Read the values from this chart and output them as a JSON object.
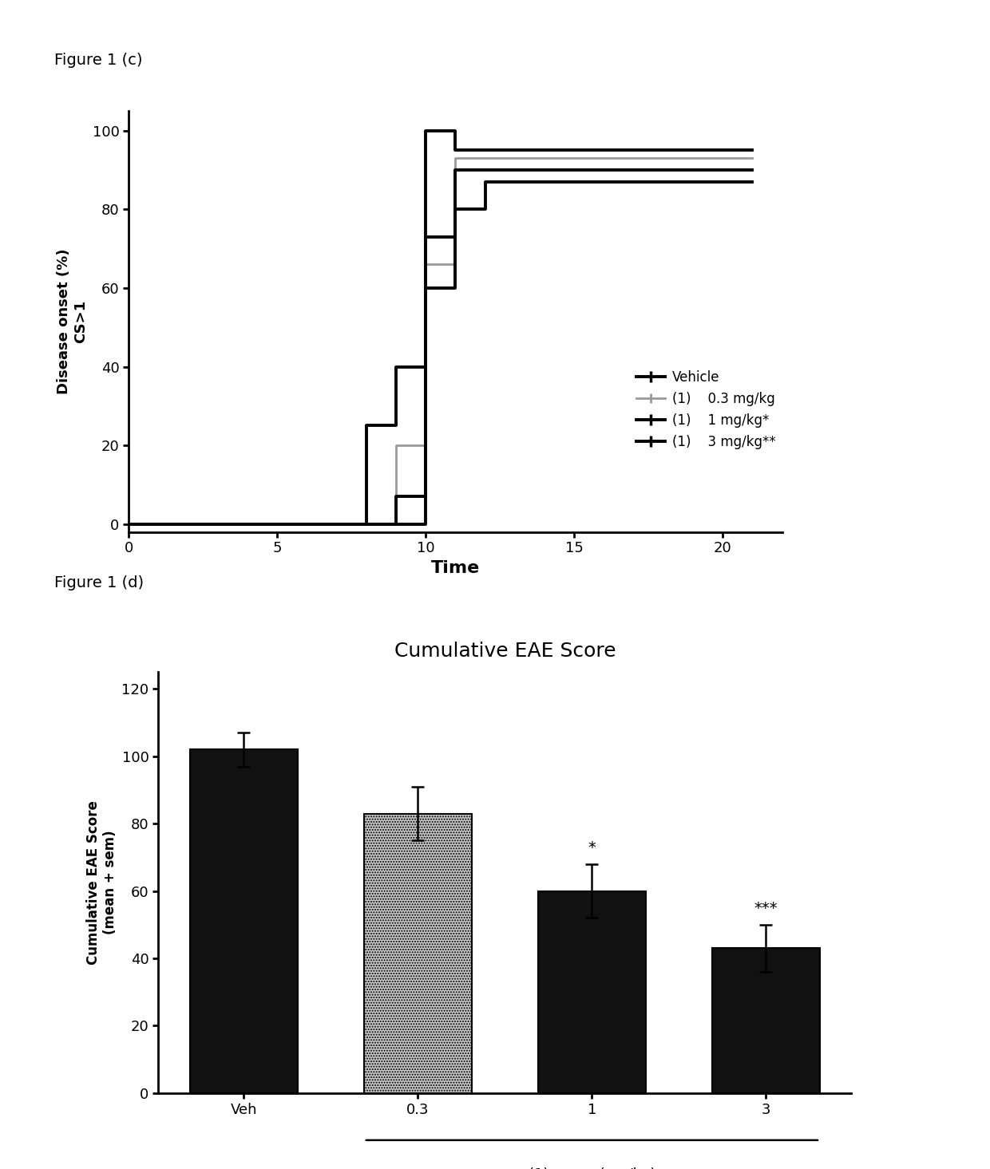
{
  "fig_label_c": "Figure 1 (c)",
  "fig_label_d": "Figure 1 (d)",
  "panel_c": {
    "xlabel": "Time",
    "ylabel": "Disease onset (%)\nCS>1",
    "xlim": [
      0,
      22
    ],
    "ylim": [
      -2,
      105
    ],
    "xticks": [
      0,
      5,
      10,
      15,
      20
    ],
    "yticks": [
      0,
      20,
      40,
      60,
      80,
      100
    ],
    "vehicle_x": [
      0,
      8,
      8,
      9,
      9,
      10,
      10,
      11,
      11,
      21
    ],
    "vehicle_y": [
      0,
      0,
      25,
      25,
      40,
      40,
      60,
      60,
      90,
      90
    ],
    "dose03_x": [
      0,
      9,
      9,
      10,
      10,
      11,
      11,
      21
    ],
    "dose03_y": [
      0,
      0,
      20,
      20,
      66,
      66,
      93,
      93
    ],
    "dose1_x": [
      0,
      9,
      9,
      10,
      10,
      11,
      11,
      12,
      12,
      21
    ],
    "dose1_y": [
      0,
      0,
      7,
      7,
      73,
      73,
      80,
      80,
      87,
      87
    ],
    "dose3_x": [
      0,
      10,
      10,
      11,
      11,
      21
    ],
    "dose3_y": [
      0,
      0,
      100,
      100,
      95,
      95
    ],
    "vehicle_color": "#000000",
    "dose03_color": "#999999",
    "dose1_color": "#000000",
    "dose3_color": "#000000",
    "lw_black": 2.8,
    "lw_gray": 2.0
  },
  "panel_d": {
    "title": "Cumulative EAE Score",
    "ylabel": "Cumulative EAE Score\n(mean + sem)",
    "categories": [
      "Veh",
      "0.3",
      "1",
      "3"
    ],
    "values": [
      102,
      83,
      60,
      43
    ],
    "errors": [
      5,
      8,
      8,
      7
    ],
    "bar_colors": [
      "#111111",
      "#c8c8c8",
      "#111111",
      "#111111"
    ],
    "ylim": [
      0,
      125
    ],
    "yticks": [
      0,
      20,
      40,
      60,
      80,
      100,
      120
    ],
    "annotations": [
      "",
      "",
      "*",
      "***"
    ]
  }
}
